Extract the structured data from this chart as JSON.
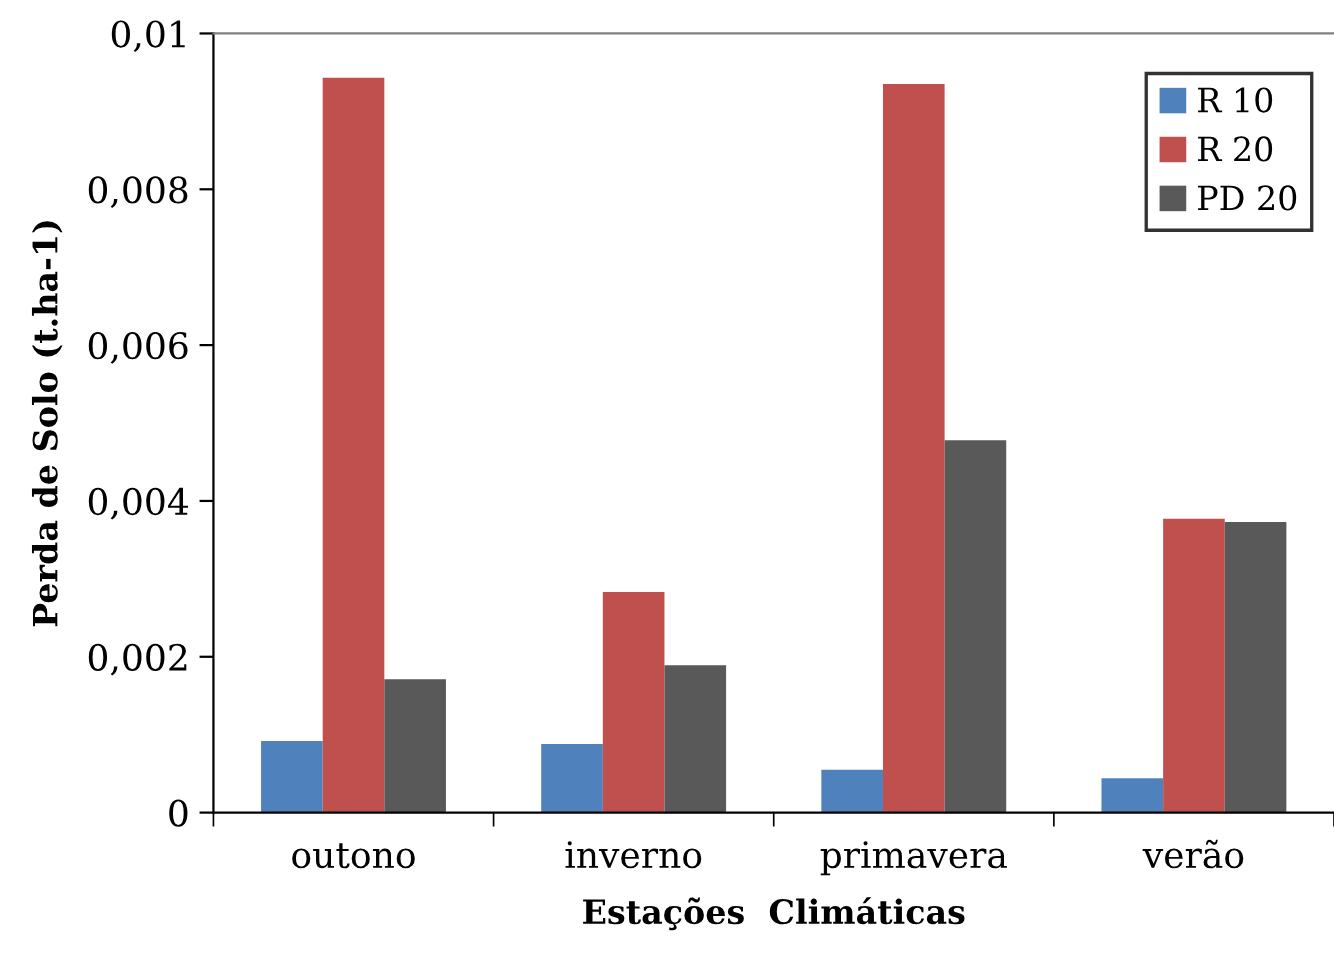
{
  "chart_data": {
    "type": "bar",
    "xlabel": "Estações  Climáticas",
    "ylabel": "Perda de Solo (t.ha-1)",
    "categories": [
      "outono",
      "inverno",
      "primavera",
      "verão"
    ],
    "series": [
      {
        "name": "R 10",
        "color": "#4f81bd",
        "values": [
          0.00092,
          0.00088,
          0.00055,
          0.00044
        ]
      },
      {
        "name": "R 20",
        "color": "#c0504d",
        "values": [
          0.00943,
          0.00283,
          0.00935,
          0.00377
        ]
      },
      {
        "name": "PD 20",
        "color": "#595959",
        "values": [
          0.00171,
          0.00189,
          0.00478,
          0.00373
        ]
      }
    ],
    "ylim": [
      0,
      0.01
    ],
    "yticks": [
      {
        "value": 0,
        "label": "0"
      },
      {
        "value": 0.002,
        "label": "0,002"
      },
      {
        "value": 0.004,
        "label": "0,004"
      },
      {
        "value": 0.006,
        "label": "0,006"
      },
      {
        "value": 0.008,
        "label": "0,008"
      },
      {
        "value": 0.01,
        "label": "0,01"
      }
    ],
    "grid": false,
    "legend": "top right"
  }
}
